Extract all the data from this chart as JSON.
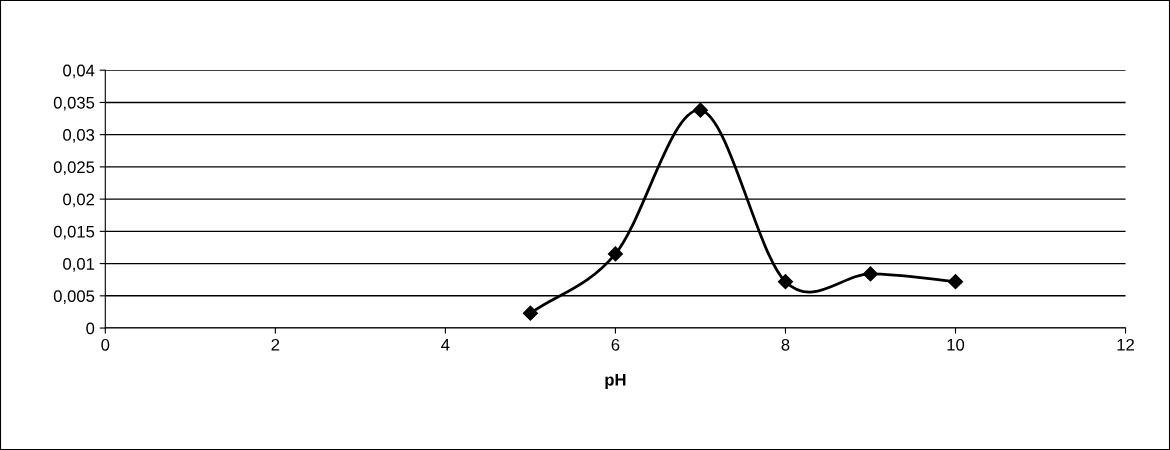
{
  "chart_data": {
    "type": "line",
    "xlabel": "pH",
    "x": [
      5,
      6,
      7,
      8,
      9,
      10
    ],
    "series": [
      {
        "color": "#000000",
        "values": [
          0.0023,
          0.0115,
          0.0338,
          0.0072,
          0.0084,
          0.0072
        ]
      }
    ],
    "xlim": [
      0,
      12
    ],
    "xticks": [
      0,
      2,
      4,
      6,
      8,
      10,
      12
    ],
    "ylim": [
      0,
      0.04
    ],
    "yticks": [
      0,
      {
        "value": 0.005,
        "label": "0,005"
      },
      {
        "value": 0.01,
        "label": "0,01"
      },
      {
        "value": 0.015,
        "label": "0,015"
      },
      {
        "value": 0.02,
        "label": "0,02"
      },
      {
        "value": 0.025,
        "label": "0,025"
      },
      {
        "value": 0.03,
        "label": "0,03"
      },
      {
        "value": 0.035,
        "label": "0,035"
      },
      {
        "value": 0.04,
        "label": "0,04"
      }
    ],
    "grid": "y",
    "marker": "diamond",
    "line_style": "solid"
  }
}
